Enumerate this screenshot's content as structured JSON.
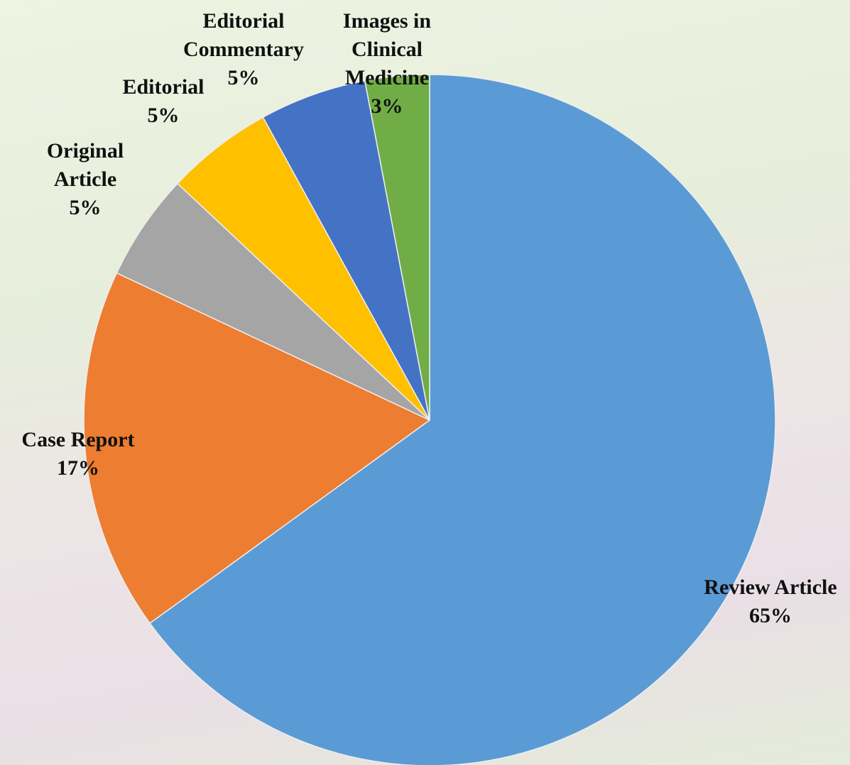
{
  "chart_data": {
    "type": "pie",
    "categories": [
      "Review Article",
      "Case Report",
      "Original Article",
      "Editorial",
      "Editorial Commentary",
      "Images in Clinical Medicine"
    ],
    "values": [
      65,
      17,
      5,
      5,
      5,
      3
    ],
    "value_labels": [
      "65%",
      "17%",
      "5%",
      "5%",
      "5%",
      "3%"
    ],
    "colors": [
      "#5b9bd5",
      "#ed7d31",
      "#a5a5a5",
      "#ffc000",
      "#4472c4",
      "#70ad47"
    ]
  }
}
